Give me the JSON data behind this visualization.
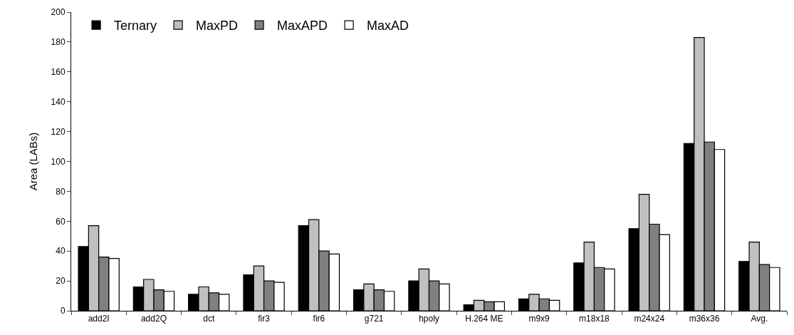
{
  "chart_data": {
    "type": "bar",
    "ylabel": "Area (LABs)",
    "categories": [
      "add2I",
      "add2Q",
      "dct",
      "fir3",
      "fir6",
      "g721",
      "hpoly",
      "H.264 ME",
      "m9x9",
      "m18x18",
      "m24x24",
      "m36x36",
      "Avg."
    ],
    "series": [
      {
        "name": "Ternary",
        "color": "#000000",
        "values": [
          43,
          16,
          11,
          24,
          57,
          14,
          20,
          4,
          8,
          32,
          55,
          112,
          33
        ]
      },
      {
        "name": "MaxPD",
        "color": "#c0c0c0",
        "values": [
          57,
          21,
          16,
          30,
          61,
          18,
          28,
          7,
          11,
          46,
          78,
          183,
          46
        ]
      },
      {
        "name": "MaxAPD",
        "color": "#808080",
        "values": [
          36,
          14,
          12,
          20,
          40,
          14,
          20,
          6,
          8,
          29,
          58,
          113,
          31
        ]
      },
      {
        "name": "MaxAD",
        "color": "#ffffff",
        "values": [
          35,
          13,
          11,
          19,
          38,
          13,
          18,
          6,
          7,
          28,
          51,
          108,
          29
        ]
      }
    ],
    "ylim": [
      0,
      200
    ],
    "yticks": [
      0,
      20,
      40,
      60,
      80,
      100,
      120,
      140,
      160,
      180,
      200
    ],
    "grid": false,
    "legend": "top left"
  }
}
